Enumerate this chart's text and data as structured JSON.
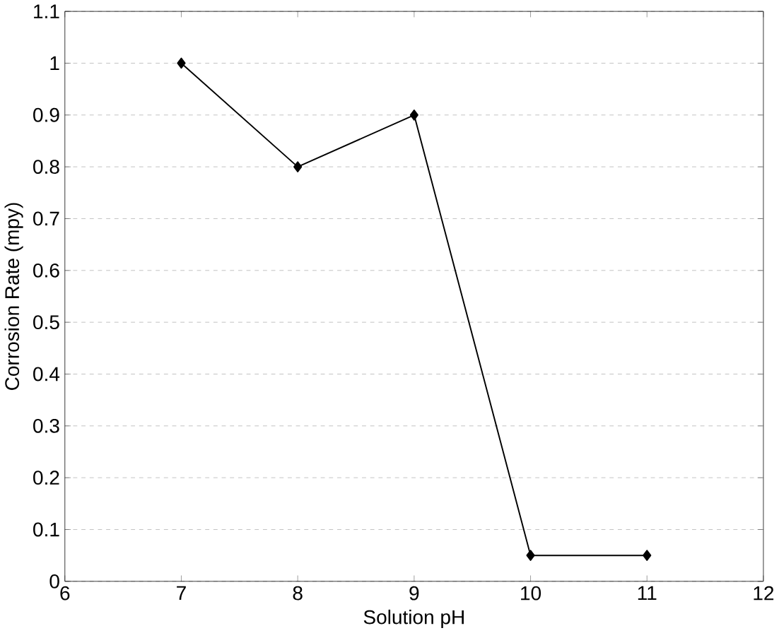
{
  "chart_data": {
    "type": "line",
    "xlabel": "Solution pH",
    "ylabel": "Corrosion Rate (mpy)",
    "x": [
      7,
      8,
      9,
      10,
      11
    ],
    "series": [
      {
        "color": "#000000",
        "values": [
          1,
          0.8,
          0.9,
          0.05,
          0.05
        ]
      }
    ],
    "xlim": [
      6,
      12
    ],
    "xticks": [
      6,
      7,
      8,
      9,
      10,
      11,
      12
    ],
    "ylim": [
      0,
      1.1
    ],
    "yticks": [
      0,
      0.1,
      0.2,
      0.3,
      0.4,
      0.5,
      0.6,
      0.7,
      0.8,
      0.9,
      1,
      1.1
    ],
    "grid": "y",
    "marker": "diamond",
    "line_style": "solid"
  }
}
